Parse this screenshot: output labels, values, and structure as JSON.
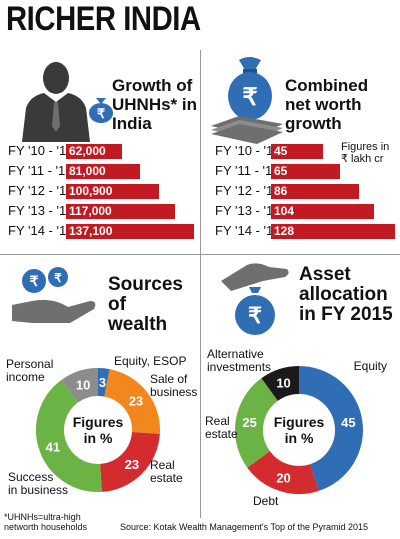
{
  "title": "RICHER INDIA",
  "panels": {
    "growth": {
      "title_lines": [
        "Growth of",
        "UHNHs* in",
        "India"
      ]
    },
    "networth": {
      "title_lines": [
        "Combined",
        "net worth",
        "growth"
      ],
      "note_lines": [
        "Figures in",
        "₹ lakh cr"
      ]
    },
    "sources": {
      "title_lines": [
        "Sources of",
        "wealth"
      ],
      "center_lines": [
        "Figures",
        "in %"
      ]
    },
    "asset": {
      "title_lines": [
        "Asset",
        "allocation",
        "in FY 2015"
      ],
      "center_lines": [
        "Figures",
        "in %"
      ]
    }
  },
  "colors": {
    "bar_red": "#c21a22",
    "blue": "#2f6db5",
    "orange": "#f2871d",
    "red": "#d42b2f",
    "green": "#6bb345",
    "gray": "#8c8c8c",
    "black": "#1a1a1a",
    "icon_dark": "#3a3a3a",
    "icon_gray": "#6f6f6f"
  },
  "icons": [
    "businessman-icon",
    "rupee-money-bag-icon",
    "hand-with-coins-icon",
    "hand-with-money-bag-icon"
  ],
  "chart_data": [
    {
      "type": "bar",
      "orientation": "horizontal",
      "title": "Growth of UHNHs* in India",
      "categories": [
        "FY '10 - '11",
        "FY '11 - '12",
        "FY '12 - '13",
        "FY '13 - '14",
        "FY '14 - '15"
      ],
      "value_labels": [
        "62,000",
        "81,000",
        "100,900",
        "117,000",
        "137,100"
      ],
      "values": [
        62000,
        81000,
        100900,
        117000,
        137100
      ],
      "xlim": [
        0,
        137100
      ]
    },
    {
      "type": "bar",
      "orientation": "horizontal",
      "title": "Combined net worth growth",
      "note": "Figures in ₹ lakh cr",
      "categories": [
        "FY '10 - '11",
        "FY '11 - '12",
        "FY '12 - '13",
        "FY '13 - '14",
        "FY '14 - '15"
      ],
      "values": [
        45,
        65,
        86,
        104,
        128
      ],
      "xlim": [
        0,
        128
      ]
    },
    {
      "type": "pie",
      "donut": true,
      "title": "Sources of wealth",
      "slices": [
        {
          "label": "Equity, ESOP",
          "value": 3,
          "color": "#2f6db5"
        },
        {
          "label": "Sale of business",
          "value": 23,
          "color": "#f2871d"
        },
        {
          "label": "Real estate",
          "value": 23,
          "color": "#d42b2f"
        },
        {
          "label": "Success in business",
          "value": 41,
          "color": "#6bb345"
        },
        {
          "label": "Personal income",
          "value": 10,
          "color": "#8c8c8c"
        }
      ]
    },
    {
      "type": "pie",
      "donut": true,
      "title": "Asset allocation in FY 2015",
      "slices": [
        {
          "label": "Equity",
          "value": 45,
          "color": "#2f6db5"
        },
        {
          "label": "Debt",
          "value": 20,
          "color": "#d42b2f"
        },
        {
          "label": "Real estate",
          "value": 25,
          "color": "#6bb345"
        },
        {
          "label": "Alternative investments",
          "value": 10,
          "color": "#1a1a1a"
        }
      ]
    }
  ],
  "footnote_lines": [
    "*UHNHs=ultra-high",
    "networth households"
  ],
  "source": "Source: Kotak Wealth Management's Top of the Pyramid 2015"
}
